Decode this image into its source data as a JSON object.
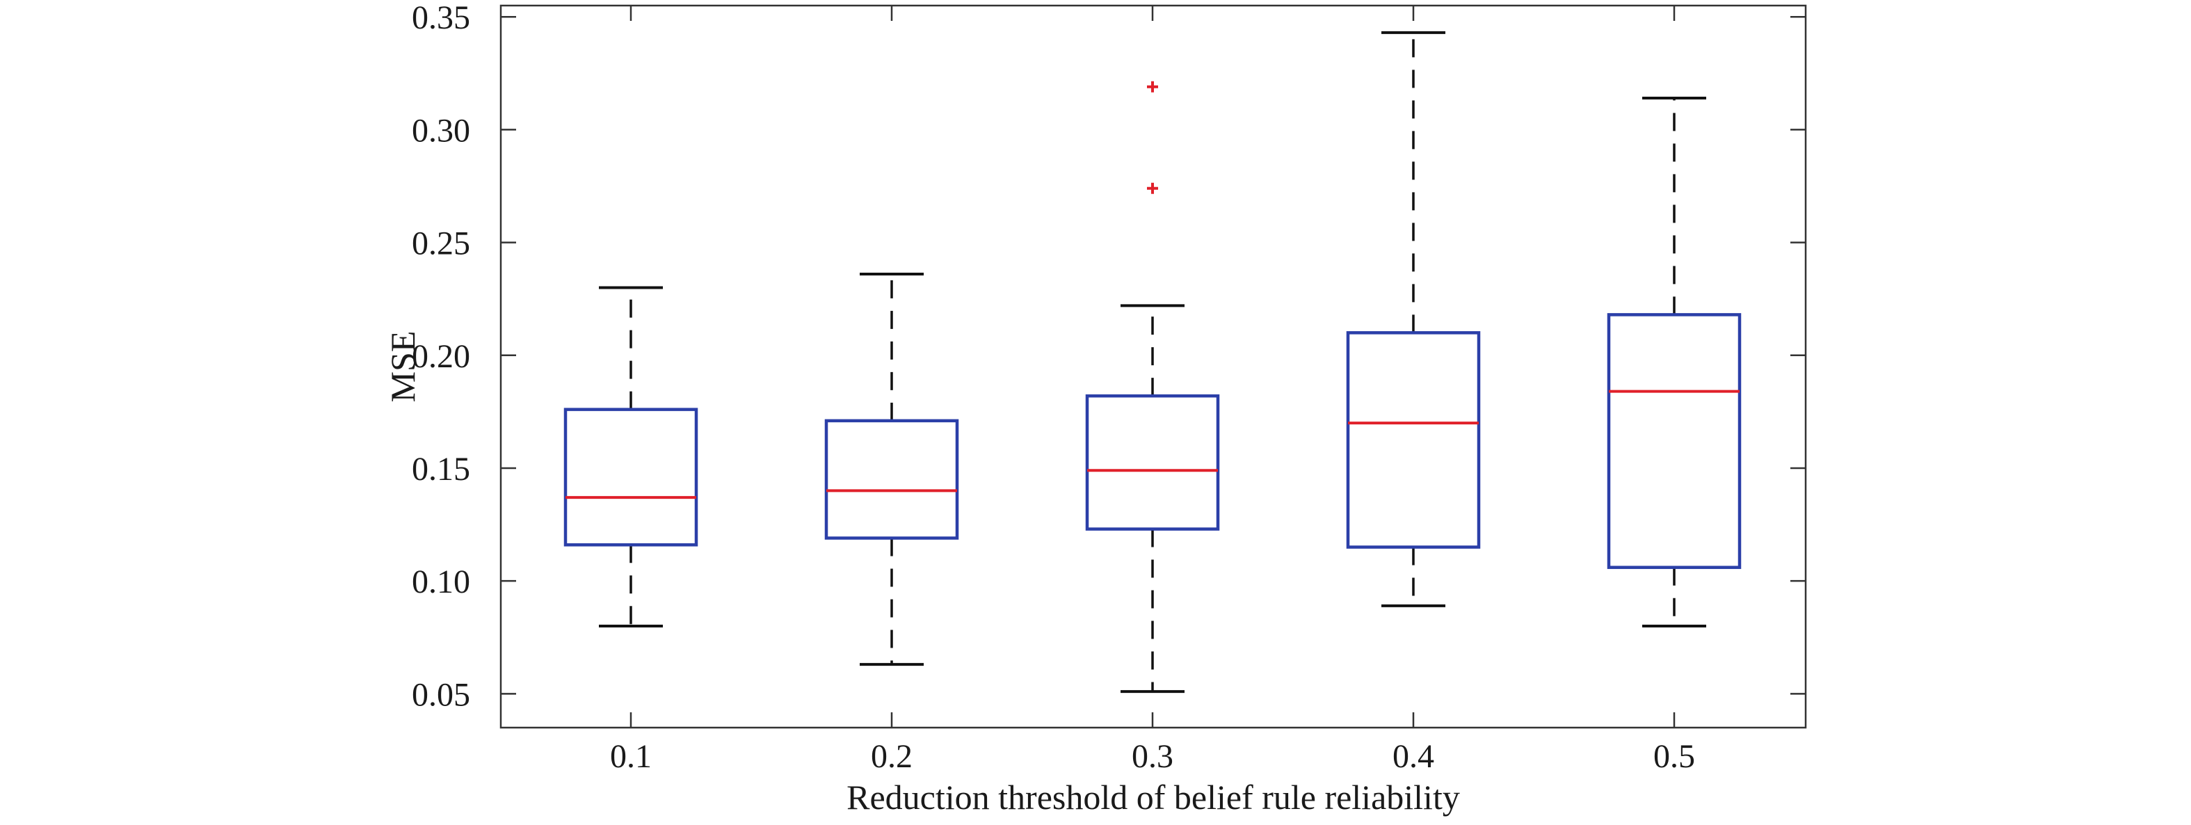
{
  "chart_data": {
    "type": "boxplot",
    "title": "",
    "xlabel": "Reduction threshold of belief rule reliability",
    "ylabel": "MSE",
    "ylim": [
      0.035,
      0.355
    ],
    "yticks": [
      "0.05",
      "0.10",
      "0.15",
      "0.20",
      "0.25",
      "0.30",
      "0.35"
    ],
    "categories": [
      "0.1",
      "0.2",
      "0.3",
      "0.4",
      "0.5"
    ],
    "boxes": [
      {
        "category": "0.1",
        "whisker_low": 0.08,
        "q1": 0.116,
        "median": 0.137,
        "q3": 0.176,
        "whisker_high": 0.23,
        "outliers": []
      },
      {
        "category": "0.2",
        "whisker_low": 0.063,
        "q1": 0.119,
        "median": 0.14,
        "q3": 0.171,
        "whisker_high": 0.236,
        "outliers": []
      },
      {
        "category": "0.3",
        "whisker_low": 0.051,
        "q1": 0.123,
        "median": 0.149,
        "q3": 0.182,
        "whisker_high": 0.222,
        "outliers": [
          0.274,
          0.319
        ]
      },
      {
        "category": "0.4",
        "whisker_low": 0.089,
        "q1": 0.115,
        "median": 0.17,
        "q3": 0.21,
        "whisker_high": 0.343,
        "outliers": []
      },
      {
        "category": "0.5",
        "whisker_low": 0.08,
        "q1": 0.106,
        "median": 0.184,
        "q3": 0.218,
        "whisker_high": 0.314,
        "outliers": []
      }
    ],
    "grid": false,
    "legend": "none",
    "colors": {
      "box": "#2b3fa8",
      "median": "#e0202a",
      "whisker": "#111111",
      "outlier": "#e0202a",
      "axis": "#333333"
    }
  }
}
